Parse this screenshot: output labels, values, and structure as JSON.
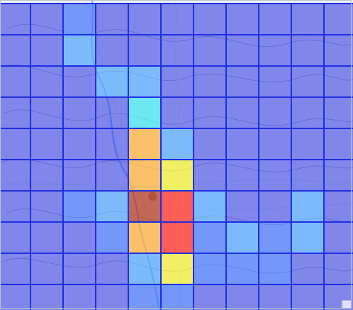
{
  "map": {
    "grid": {
      "cols": 11,
      "rows": 10,
      "colors": {
        "0": "#3c46e6",
        "1": "#4a79ff",
        "2": "#55a8ff",
        "3": "#42e6f4",
        "4": "#f3ef35",
        "5": "#ffb23d",
        "6": "#ff2f25",
        "7": "#b33b23"
      },
      "cells": [
        [
          0,
          0,
          1,
          0,
          0,
          0,
          0,
          0,
          0,
          0,
          0
        ],
        [
          0,
          0,
          2,
          0,
          0,
          0,
          0,
          0,
          0,
          0,
          0
        ],
        [
          0,
          0,
          0,
          2,
          2,
          0,
          0,
          0,
          0,
          0,
          0
        ],
        [
          0,
          0,
          0,
          0,
          3,
          0,
          0,
          0,
          0,
          0,
          0
        ],
        [
          0,
          0,
          0,
          0,
          5,
          2,
          0,
          0,
          0,
          0,
          0
        ],
        [
          0,
          0,
          0,
          0,
          5,
          4,
          0,
          0,
          0,
          0,
          0
        ],
        [
          0,
          0,
          1,
          2,
          7,
          6,
          2,
          0,
          0,
          2,
          0
        ],
        [
          0,
          0,
          0,
          1,
          5,
          6,
          1,
          2,
          1,
          2,
          0
        ],
        [
          0,
          0,
          0,
          0,
          2,
          4,
          1,
          1,
          1,
          0,
          0
        ],
        [
          0,
          0,
          0,
          0,
          1,
          1,
          0,
          0,
          0,
          0,
          0
        ]
      ]
    },
    "labels": [
      {
        "id": "label-1",
        "text": ""
      },
      {
        "id": "label-2",
        "text": ""
      },
      {
        "id": "label-3",
        "text": ""
      },
      {
        "id": "label-4",
        "text": ""
      }
    ]
  }
}
